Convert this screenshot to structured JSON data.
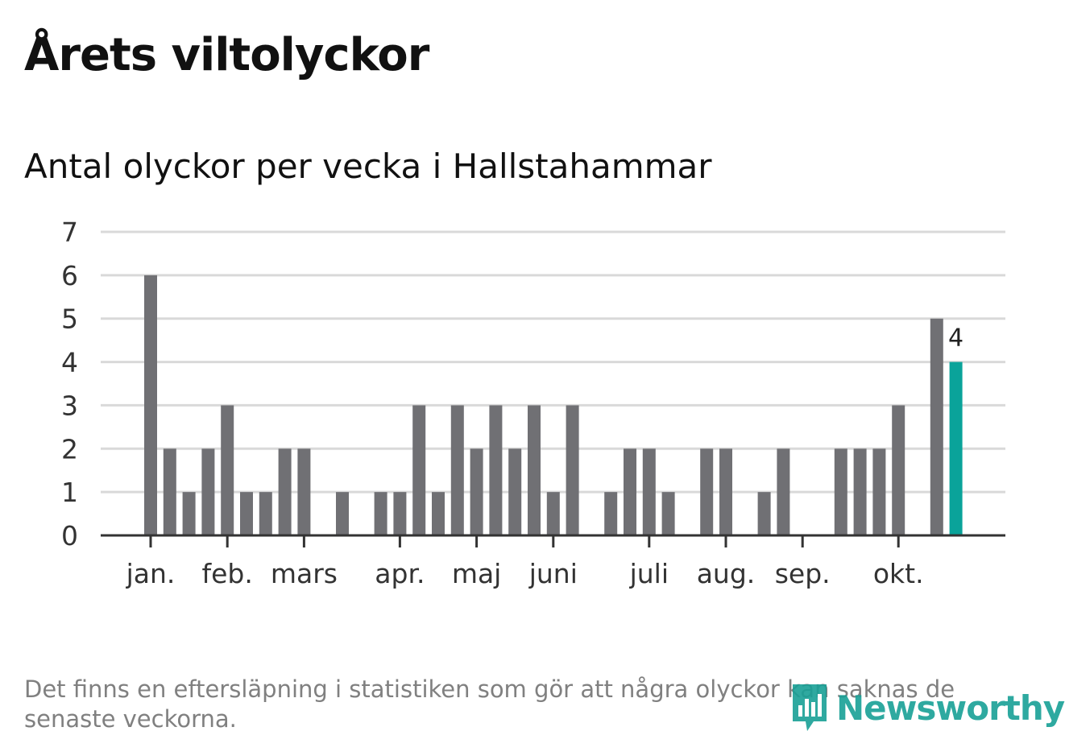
{
  "title": "Årets viltolyckor",
  "subtitle": "Antal olyckor per vecka i Hallstahammar",
  "footnote": "Det finns en eftersläpning i statistiken som gör att några olyckor kan saknas de senaste veckorna.",
  "logo": {
    "text": "Newsworthy",
    "icon": "bar-chart-speech-icon"
  },
  "colors": {
    "bar": "#707074",
    "highlight": "#0aa39a",
    "grid": "#d9d9d9",
    "axis": "#333333"
  },
  "chart_data": {
    "type": "bar",
    "title": "Antal olyckor per vecka i Hallstahammar",
    "xlabel": "",
    "ylabel": "",
    "ylim": [
      0,
      7
    ],
    "y_ticks": [
      0,
      1,
      2,
      3,
      4,
      5,
      6,
      7
    ],
    "grid": true,
    "weeks": [
      1,
      2,
      3,
      4,
      5,
      6,
      7,
      8,
      9,
      10,
      11,
      12,
      13,
      14,
      15,
      16,
      17,
      18,
      19,
      20,
      21,
      22,
      23,
      24,
      25,
      26,
      27,
      28,
      29,
      30,
      31,
      32,
      33,
      34,
      35,
      36,
      37,
      38,
      39,
      40,
      41,
      42,
      43
    ],
    "values": [
      6,
      2,
      1,
      2,
      3,
      1,
      1,
      2,
      2,
      0,
      1,
      0,
      1,
      1,
      3,
      1,
      3,
      2,
      3,
      2,
      3,
      1,
      3,
      0,
      1,
      2,
      2,
      1,
      0,
      2,
      2,
      0,
      1,
      2,
      0,
      0,
      2,
      2,
      2,
      3,
      0,
      5,
      4
    ],
    "highlight_index": 42,
    "highlight_label": "4",
    "month_ticks": [
      {
        "label": "jan.",
        "week": 1
      },
      {
        "label": "feb.",
        "week": 5
      },
      {
        "label": "mars",
        "week": 9
      },
      {
        "label": "apr.",
        "week": 14
      },
      {
        "label": "maj",
        "week": 18
      },
      {
        "label": "juni",
        "week": 22
      },
      {
        "label": "juli",
        "week": 27
      },
      {
        "label": "aug.",
        "week": 31
      },
      {
        "label": "sep.",
        "week": 35
      },
      {
        "label": "okt.",
        "week": 40
      }
    ]
  }
}
